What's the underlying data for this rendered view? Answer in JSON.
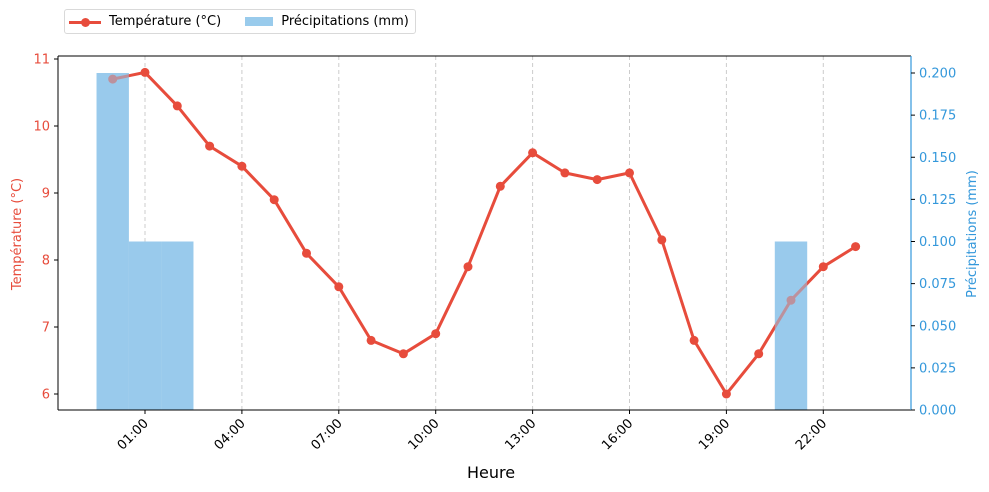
{
  "chart_data": {
    "type": "line+bar",
    "title": "",
    "xlabel": "Heure",
    "ylabel_left": "Température (°C)",
    "ylabel_right": "Précipitations (mm)",
    "x": [
      "00:00",
      "01:00",
      "02:00",
      "03:00",
      "04:00",
      "05:00",
      "06:00",
      "07:00",
      "08:00",
      "09:00",
      "10:00",
      "11:00",
      "12:00",
      "13:00",
      "14:00",
      "15:00",
      "16:00",
      "17:00",
      "18:00",
      "19:00",
      "20:00",
      "21:00",
      "22:00",
      "23:00"
    ],
    "x_tick_labels": [
      "01:00",
      "04:00",
      "07:00",
      "10:00",
      "13:00",
      "16:00",
      "19:00",
      "22:00"
    ],
    "series": [
      {
        "name": "Température (°C)",
        "type": "line",
        "axis": "left",
        "color": "#e74c3c",
        "values": [
          10.7,
          10.8,
          10.3,
          9.7,
          9.4,
          8.9,
          8.1,
          7.6,
          6.8,
          6.6,
          6.9,
          7.9,
          9.1,
          9.6,
          9.3,
          9.2,
          9.3,
          8.3,
          6.8,
          6.0,
          6.6,
          7.4,
          7.9,
          8.2
        ]
      },
      {
        "name": "Précipitations (mm)",
        "type": "bar",
        "axis": "right",
        "color": "#99cbec",
        "values": [
          0.2,
          0.1,
          0.1,
          0,
          0,
          0,
          0,
          0,
          0,
          0,
          0,
          0,
          0,
          0,
          0,
          0,
          0,
          0,
          0,
          0,
          0,
          0.1,
          0,
          0
        ]
      }
    ],
    "ylim_left": [
      5.75,
      11.05
    ],
    "yticks_left": [
      "6",
      "7",
      "8",
      "9",
      "10",
      "11"
    ],
    "ylim_right": [
      0.0,
      0.21
    ],
    "yticks_right": [
      "0.000",
      "0.025",
      "0.050",
      "0.075",
      "0.100",
      "0.125",
      "0.150",
      "0.175",
      "0.200"
    ],
    "grid": "vertical dashed at x ticks",
    "legend_position": "top-left, outside axes"
  },
  "legend": {
    "temperature_label": "Température (°C)",
    "precip_label": "Précipitations (mm)"
  },
  "colors": {
    "temperature": "#e74c3c",
    "precipitation": "#99cbec",
    "right_axis": "#3498db",
    "grid": "#cccccc"
  }
}
